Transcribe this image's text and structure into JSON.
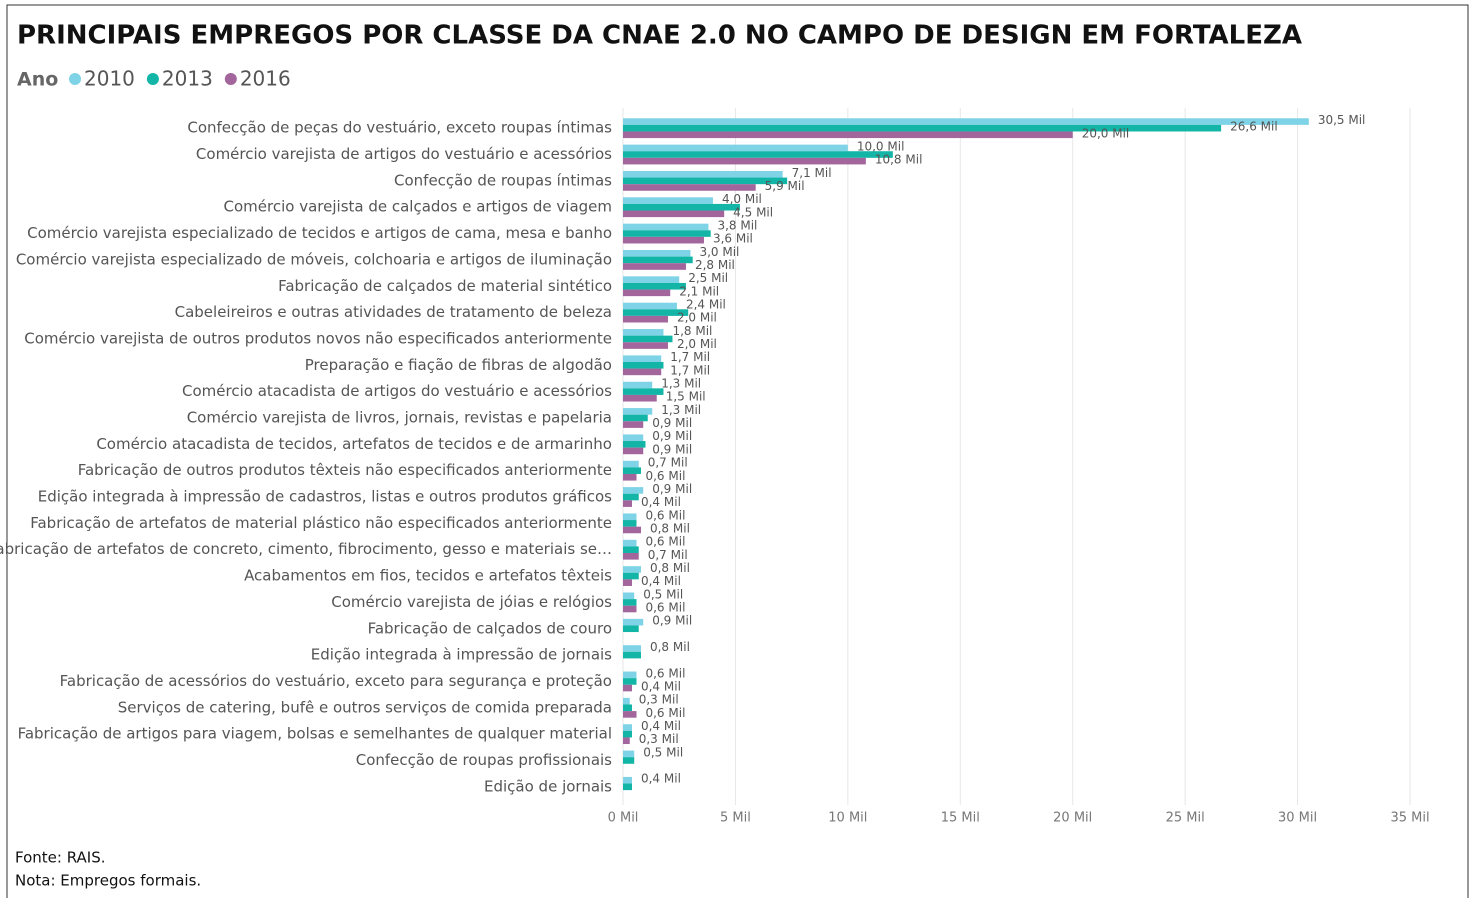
{
  "chart_data": {
    "type": "barh",
    "title": "PRINCIPAIS EMPREGOS POR CLASSE DA CNAE 2.0 NO CAMPO DE DESIGN EM FORTALEZA",
    "legend_title": "Ano",
    "legend": "top-left",
    "grid": true,
    "source": "Fonte: RAIS.",
    "note": "Nota: Empregos formais.",
    "categories": [
      "Confecção de peças do vestuário, exceto roupas íntimas",
      "Comércio varejista de artigos do vestuário e acessórios",
      "Confecção de roupas íntimas",
      "Comércio varejista de calçados e artigos de viagem",
      "Comércio varejista especializado de tecidos e artigos de cama, mesa e banho",
      "Comércio varejista especializado de móveis, colchoaria e artigos de iluminação",
      "Fabricação de calçados de material sintético",
      "Cabeleireiros e outras atividades de tratamento de beleza",
      "Comércio varejista de outros produtos novos não especificados anteriormente",
      "Preparação e fiação de fibras de algodão",
      "Comércio atacadista de artigos do vestuário e acessórios",
      "Comércio varejista de livros, jornais, revistas e papelaria",
      "Comércio atacadista de tecidos, artefatos de tecidos e de armarinho",
      "Fabricação de outros produtos têxteis não especificados anteriormente",
      "Edição integrada à impressão de cadastros, listas e outros produtos gráficos",
      "Fabricação de artefatos de material plástico não especificados anteriormente",
      "Fabricação de artefatos de concreto, cimento, fibrocimento, gesso e materiais se…",
      "Acabamentos em fios, tecidos e artefatos têxteis",
      "Comércio varejista de jóias e relógios",
      "Fabricação de calçados de couro",
      "Edição integrada à impressão de jornais",
      "Fabricação de acessórios do vestuário, exceto para segurança e proteção",
      "Serviços de catering, bufê e outros serviços de comida preparada",
      "Fabricação de artigos para viagem, bolsas e semelhantes de qualquer material",
      "Confecção de roupas profissionais",
      "Edição de jornais"
    ],
    "series": [
      {
        "name": "2010",
        "color": "#7fd3e6",
        "values": [
          30.5,
          10.0,
          7.1,
          4.0,
          3.8,
          3.0,
          2.5,
          2.4,
          1.8,
          1.7,
          1.3,
          1.3,
          0.9,
          0.7,
          0.9,
          0.6,
          0.6,
          0.8,
          0.5,
          0.9,
          0.8,
          0.6,
          0.3,
          0.4,
          0.5,
          0.4
        ],
        "value_labels": [
          "30,5 Mil",
          "10,0 Mil",
          "7,1 Mil",
          "4,0 Mil",
          "3,8 Mil",
          "3,0 Mil",
          "2,5 Mil",
          "2,4 Mil",
          "1,8 Mil",
          "1,7 Mil",
          "1,3 Mil",
          "1,3 Mil",
          "0,9 Mil",
          "0,7 Mil",
          "0,9 Mil",
          "0,6 Mil",
          "0,6 Mil",
          "0,8 Mil",
          "0,5 Mil",
          "0,9 Mil",
          "0,8 Mil",
          "0,6 Mil",
          "0,3 Mil",
          "0,4 Mil",
          "0,5 Mil",
          "0,4 Mil"
        ]
      },
      {
        "name": "2013",
        "color": "#13b5a6",
        "values": [
          26.6,
          12.0,
          7.3,
          5.2,
          3.9,
          3.1,
          2.8,
          2.9,
          2.2,
          1.8,
          1.8,
          1.1,
          1.0,
          0.8,
          0.7,
          0.6,
          0.7,
          0.7,
          0.6,
          0.7,
          0.8,
          0.6,
          0.4,
          0.4,
          0.5,
          0.4
        ],
        "value_labels": [
          "26,6 Mil",
          null,
          null,
          null,
          null,
          null,
          null,
          null,
          null,
          null,
          null,
          null,
          null,
          null,
          null,
          null,
          null,
          null,
          null,
          null,
          null,
          null,
          null,
          null,
          null,
          null
        ]
      },
      {
        "name": "2016",
        "color": "#a2659c",
        "values": [
          20.0,
          10.8,
          5.9,
          4.5,
          3.6,
          2.8,
          2.1,
          2.0,
          2.0,
          1.7,
          1.5,
          0.9,
          0.9,
          0.6,
          0.4,
          0.8,
          0.7,
          0.4,
          0.6,
          null,
          null,
          0.4,
          0.6,
          0.3,
          null,
          null
        ],
        "value_labels": [
          "20,0 Mil",
          "10,8 Mil",
          "5,9 Mil",
          "4,5 Mil",
          "3,6 Mil",
          "2,8 Mil",
          "2,1 Mil",
          "2,0 Mil",
          "2,0 Mil",
          "1,7 Mil",
          "1,5 Mil",
          "0,9 Mil",
          "0,9 Mil",
          "0,6 Mil",
          "0,4 Mil",
          "0,8 Mil",
          "0,7 Mil",
          "0,4 Mil",
          "0,6 Mil",
          null,
          null,
          "0,4 Mil",
          "0,6 Mil",
          "0,3 Mil",
          null,
          null
        ]
      }
    ],
    "xlim": [
      0,
      35
    ],
    "xticks": [
      {
        "value": 0,
        "label": "0 Mil"
      },
      {
        "value": 5,
        "label": "5 Mil"
      },
      {
        "value": 10,
        "label": "10 Mil"
      },
      {
        "value": 15,
        "label": "15 Mil"
      },
      {
        "value": 20,
        "label": "20 Mil"
      },
      {
        "value": 25,
        "label": "25 Mil"
      },
      {
        "value": 30,
        "label": "30 Mil"
      },
      {
        "value": 35,
        "label": "35 Mil"
      }
    ]
  }
}
